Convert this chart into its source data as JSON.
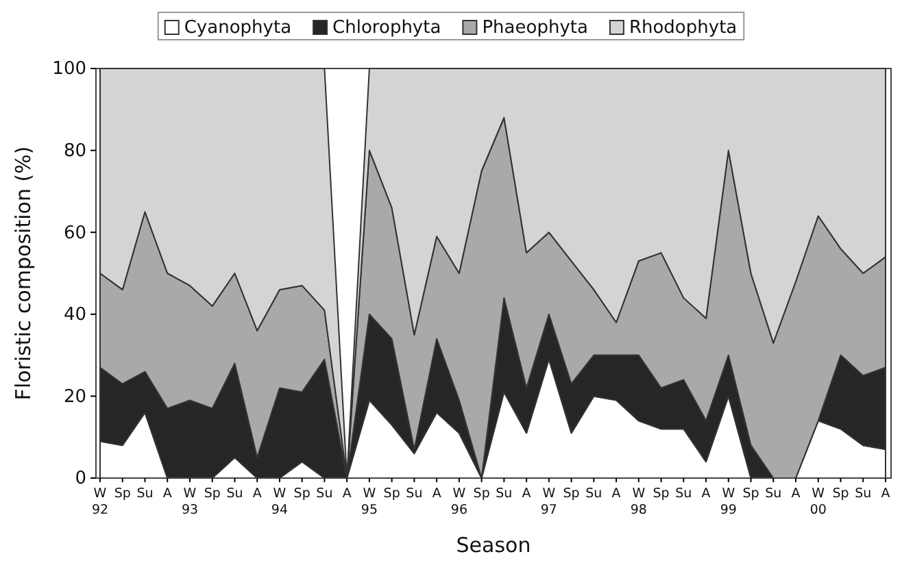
{
  "chart_data": {
    "type": "area",
    "stacked": true,
    "xlabel": "Season",
    "ylabel": "Floristic composition (%)",
    "legend": "top",
    "grid": false,
    "categories": [
      "W 92",
      "Sp",
      "Su",
      "A",
      "W 93",
      "Sp",
      "Su",
      "A",
      "W 94",
      "Sp",
      "Su",
      "A",
      "W 95",
      "Sp",
      "Su",
      "A",
      "W 96",
      "Sp",
      "Su",
      "A",
      "W 97",
      "Sp",
      "Su",
      "A",
      "W 98",
      "Sp",
      "Su",
      "A",
      "W 99",
      "Sp",
      "Su",
      "A",
      "W 00",
      "Sp",
      "Su",
      "A"
    ],
    "ylim": [
      0,
      100
    ],
    "yticks": [
      0,
      20,
      40,
      60,
      80,
      100
    ],
    "series": [
      {
        "name": "Cyanophyta",
        "color": "#ffffff",
        "values": [
          9,
          8,
          16,
          0,
          0,
          0,
          5,
          0,
          0,
          4,
          0,
          0,
          19,
          13,
          6,
          16,
          11,
          0,
          21,
          11,
          29,
          11,
          20,
          19,
          14,
          12,
          12,
          4,
          20,
          0,
          0,
          0,
          14,
          12,
          8,
          7
        ]
      },
      {
        "name": "Chlorophyta",
        "color": "#262626",
        "values": [
          18,
          15,
          10,
          17,
          19,
          17,
          23,
          5,
          22,
          17,
          29,
          0,
          21,
          21,
          1,
          18,
          8,
          0,
          23,
          11,
          11,
          12,
          10,
          11,
          16,
          10,
          12,
          10,
          10,
          8,
          0,
          0,
          0,
          18,
          17,
          20
        ]
      },
      {
        "name": "Phaeophyta",
        "color": "#a9a9a9",
        "values": [
          23,
          23,
          39,
          33,
          28,
          25,
          22,
          31,
          24,
          26,
          12,
          0,
          40,
          32,
          28,
          25,
          31,
          75,
          44,
          33,
          20,
          30,
          16,
          8,
          23,
          33,
          20,
          25,
          50,
          42,
          33,
          48,
          50,
          26,
          25,
          27
        ]
      },
      {
        "name": "Rhodophyta",
        "color": "#d4d4d4",
        "values": [
          50,
          54,
          35,
          50,
          53,
          58,
          50,
          64,
          54,
          53,
          59,
          0,
          20,
          34,
          65,
          41,
          50,
          25,
          12,
          45,
          40,
          47,
          54,
          62,
          47,
          45,
          56,
          61,
          20,
          50,
          67,
          52,
          36,
          44,
          50,
          46
        ]
      }
    ]
  }
}
